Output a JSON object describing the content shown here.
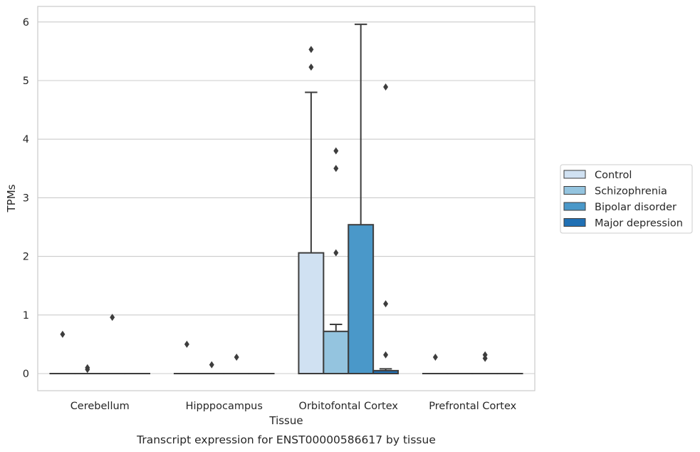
{
  "chart_data": {
    "type": "box",
    "title": "Transcript expression for ENST00000586617 by tissue",
    "xlabel": "Tissue",
    "ylabel": "TPMs",
    "ylim": [
      -0.3,
      6.27
    ],
    "yticks": [
      0,
      1,
      2,
      3,
      4,
      5,
      6
    ],
    "categories": [
      "Cerebellum",
      "Hipppocampus",
      "Orbitofontal Cortex",
      "Prefrontal Cortex"
    ],
    "grid": "horizontal",
    "legend_position": "right",
    "series": [
      {
        "name": "Control",
        "color": "#d0e1f2",
        "boxes": [
          {
            "q1": 0,
            "median": 0,
            "q3": 0,
            "whisker_low": 0,
            "whisker_high": 0,
            "outliers": [
              0.67
            ]
          },
          {
            "q1": 0,
            "median": 0,
            "q3": 0,
            "whisker_low": 0,
            "whisker_high": 0,
            "outliers": [
              0.5
            ]
          },
          {
            "q1": 0,
            "median": 0,
            "q3": 2.06,
            "whisker_low": 0,
            "whisker_high": 4.8,
            "outliers": [
              5.23,
              5.53
            ]
          },
          {
            "q1": 0,
            "median": 0,
            "q3": 0,
            "whisker_low": 0,
            "whisker_high": 0,
            "outliers": [
              0.28
            ]
          }
        ]
      },
      {
        "name": "Schizophrenia",
        "color": "#94c4df",
        "boxes": [
          {
            "q1": 0,
            "median": 0,
            "q3": 0,
            "whisker_low": 0,
            "whisker_high": 0,
            "outliers": [
              0.07,
              0.1
            ]
          },
          {
            "q1": 0,
            "median": 0,
            "q3": 0,
            "whisker_low": 0,
            "whisker_high": 0,
            "outliers": [
              0.15
            ]
          },
          {
            "q1": 0,
            "median": 0,
            "q3": 0.72,
            "whisker_low": 0,
            "whisker_high": 0.84,
            "outliers": [
              2.06,
              3.5,
              3.8
            ]
          },
          {
            "q1": 0,
            "median": 0,
            "q3": 0,
            "whisker_low": 0,
            "whisker_high": 0,
            "outliers": []
          }
        ]
      },
      {
        "name": "Bipolar disorder",
        "color": "#4a98c9",
        "boxes": [
          {
            "q1": 0,
            "median": 0,
            "q3": 0,
            "whisker_low": 0,
            "whisker_high": 0,
            "outliers": [
              0.96
            ]
          },
          {
            "q1": 0,
            "median": 0,
            "q3": 0,
            "whisker_low": 0,
            "whisker_high": 0,
            "outliers": [
              0.28
            ]
          },
          {
            "q1": 0,
            "median": 0,
            "q3": 2.54,
            "whisker_low": 0,
            "whisker_high": 5.96,
            "outliers": []
          },
          {
            "q1": 0,
            "median": 0,
            "q3": 0,
            "whisker_low": 0,
            "whisker_high": 0,
            "outliers": [
              0.26,
              0.32
            ]
          }
        ]
      },
      {
        "name": "Major depression",
        "color": "#2070b4",
        "boxes": [
          {
            "q1": 0,
            "median": 0,
            "q3": 0,
            "whisker_low": 0,
            "whisker_high": 0,
            "outliers": []
          },
          {
            "q1": 0,
            "median": 0,
            "q3": 0,
            "whisker_low": 0,
            "whisker_high": 0,
            "outliers": []
          },
          {
            "q1": 0,
            "median": 0,
            "q3": 0.05,
            "whisker_low": 0,
            "whisker_high": 0.08,
            "outliers": [
              0.32,
              1.19,
              4.89
            ]
          },
          {
            "q1": 0,
            "median": 0,
            "q3": 0,
            "whisker_low": 0,
            "whisker_high": 0,
            "outliers": []
          }
        ]
      }
    ]
  }
}
